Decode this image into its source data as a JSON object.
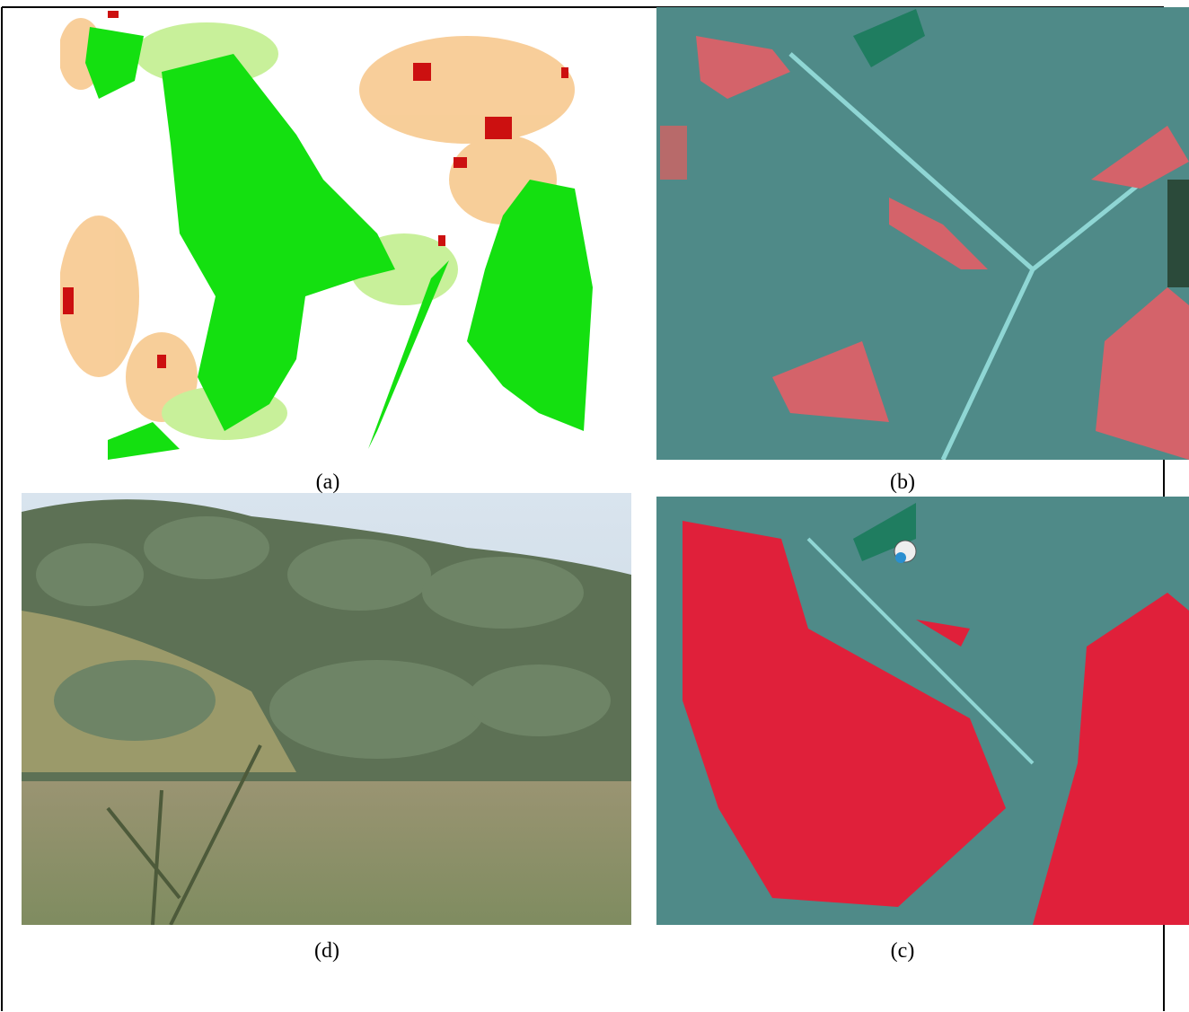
{
  "figure": {
    "panels": [
      {
        "label": "(a)"
      },
      {
        "label": "(b)"
      },
      {
        "label": "(d)"
      },
      {
        "label": "(c)"
      }
    ]
  }
}
